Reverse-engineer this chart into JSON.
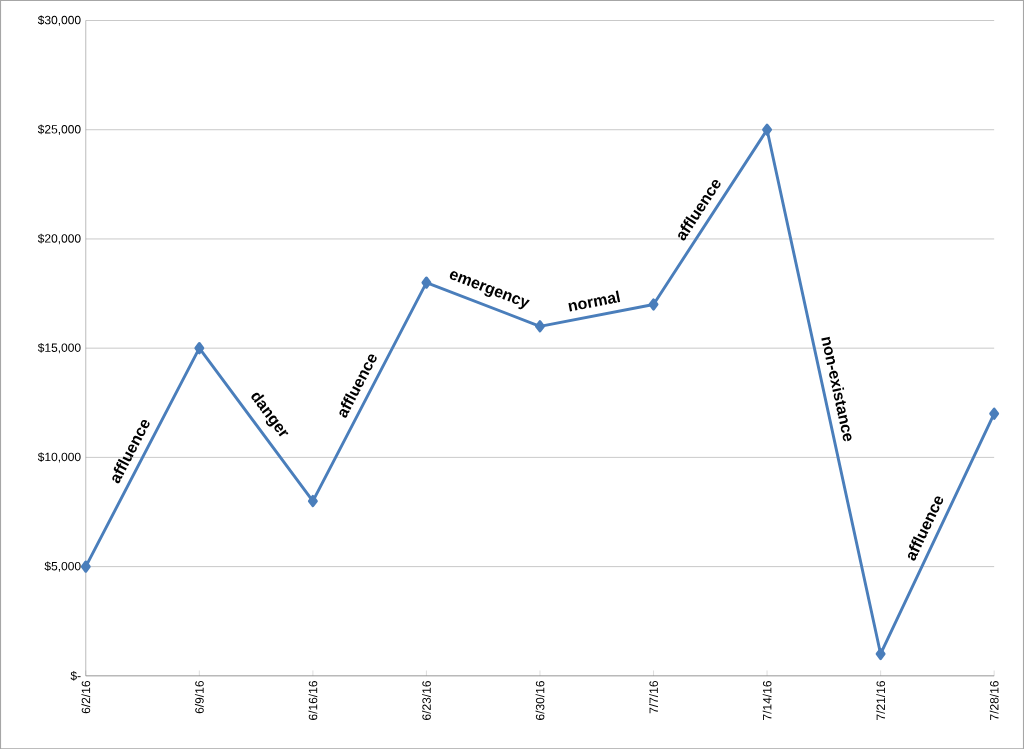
{
  "chart_data": {
    "type": "line",
    "categories": [
      "6/2/16",
      "6/9/16",
      "6/16/16",
      "6/23/16",
      "6/30/16",
      "7/7/16",
      "7/14/16",
      "7/21/16",
      "7/28/16"
    ],
    "values": [
      5000,
      15000,
      8000,
      18000,
      16000,
      17000,
      25000,
      1000,
      12000
    ],
    "color": "#4a7ebb",
    "marker": "diamond",
    "grid": "y",
    "ylim": [
      0,
      30000
    ],
    "yticks": [
      {
        "value": 0,
        "label": "$-"
      },
      {
        "value": 5000,
        "label": "$5,000"
      },
      {
        "value": 10000,
        "label": "$10,000"
      },
      {
        "value": 15000,
        "label": "$15,000"
      },
      {
        "value": 20000,
        "label": "$20,000"
      },
      {
        "value": 25000,
        "label": "$25,000"
      },
      {
        "value": 30000,
        "label": "$30,000"
      }
    ],
    "annotations": [
      "affluence",
      "danger",
      "affluence",
      "emergency",
      "normal",
      "affluence",
      "non-existance",
      "affluence"
    ]
  }
}
